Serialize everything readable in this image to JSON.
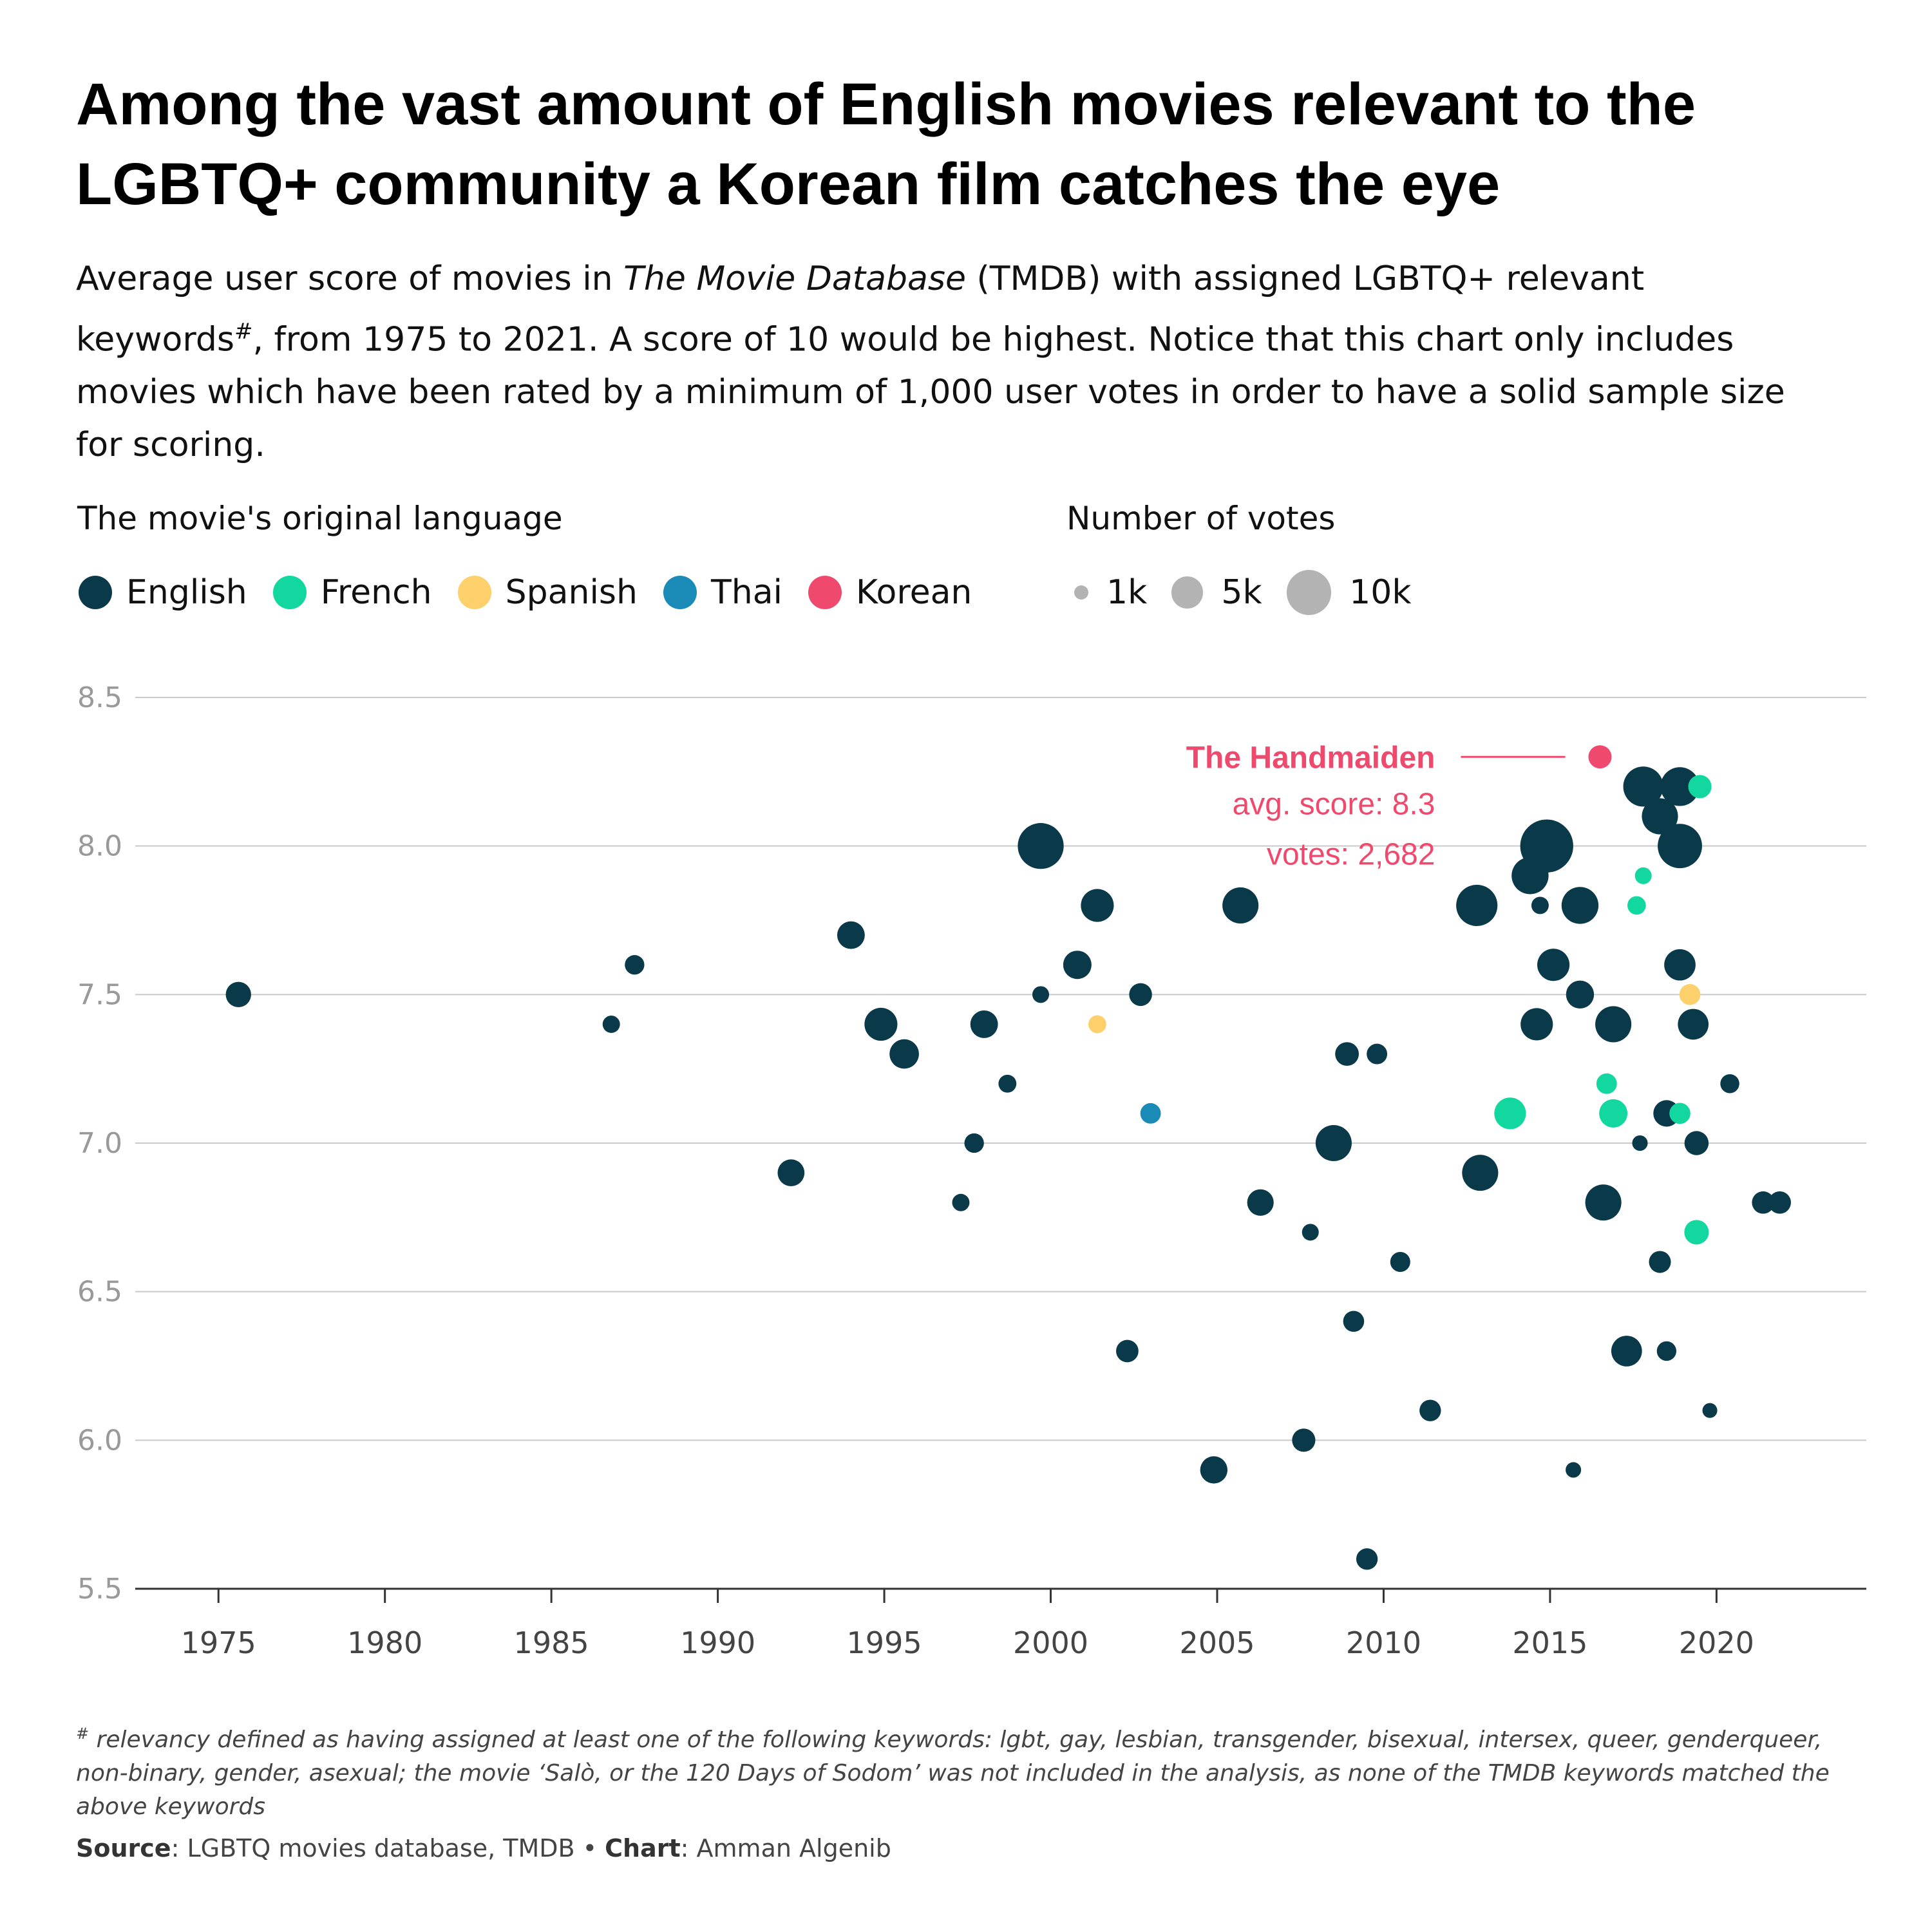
{
  "title": "Among the vast amount of English movies relevant to the LGBTQ+ community a Korean film catches the eye",
  "subtitle": {
    "part1": "Average user score of movies in ",
    "italic": "The Movie Database",
    "part2": " (TMDB) with assigned LGBTQ+ relevant keywords",
    "sup": "#",
    "part3": ", from 1975 to 2021. A score of 10 would be highest. Notice that this chart only includes movies which have been rated by a minimum of 1,000 user votes in order to have a solid sample size for scoring."
  },
  "legend": {
    "language_title": "The movie's original language",
    "votes_title": "Number of votes",
    "languages": [
      {
        "label": "English",
        "color": "#0a3a4a"
      },
      {
        "label": "French",
        "color": "#12d8a0"
      },
      {
        "label": "Spanish",
        "color": "#fdd06b"
      },
      {
        "label": "Thai",
        "color": "#1a8bb6"
      },
      {
        "label": "Korean",
        "color": "#ef4a6e"
      }
    ],
    "sizes": [
      {
        "label": "1k",
        "votes": 1000
      },
      {
        "label": "5k",
        "votes": 5000
      },
      {
        "label": "10k",
        "votes": 10000
      }
    ]
  },
  "annotation": {
    "name": "The Handmaiden",
    "score": "avg. score: 8.3",
    "votes": "votes: 2,682",
    "color": "#ef4a6e"
  },
  "footnote": {
    "sup": "#",
    "text": " relevancy defined as having assigned at least one of the following keywords: lgbt, gay, lesbian, transgender, bisexual, intersex, queer, genderqueer, non-binary, gender, asexual; the movie ‘Salò, or the 120 Days of Sodom’ was not included in the analysis, as none of the TMDB keywords matched the above keywords"
  },
  "source": {
    "source_label": "Source",
    "source_text": ": LGBTQ movies database, TMDB • ",
    "chart_label": "Chart",
    "chart_text": ": Amman Algenib"
  },
  "chart_data": {
    "type": "scatter",
    "title": "Among the vast amount of English movies relevant to the LGBTQ+ community a Korean film catches the eye",
    "xlabel": "",
    "ylabel": "",
    "xlim": [
      1972.5,
      2024.5
    ],
    "ylim": [
      5.5,
      8.5
    ],
    "x_ticks": [
      1975,
      1980,
      1985,
      1990,
      1995,
      2000,
      2005,
      2010,
      2015,
      2020
    ],
    "y_ticks": [
      "5.5",
      "6.0",
      "6.5",
      "7.0",
      "7.5",
      "8.0",
      "8.5"
    ],
    "grid": "horizontal",
    "colors": {
      "English": "#0a3a4a",
      "French": "#12d8a0",
      "Spanish": "#fdd06b",
      "Thai": "#1a8bb6",
      "Korean": "#ef4a6e"
    },
    "size_encoding": "votes",
    "series": [
      {
        "name": "English",
        "points": [
          [
            1975.6,
            7.5,
            3200
          ],
          [
            1986.8,
            7.4,
            1500
          ],
          [
            1987.5,
            7.6,
            1900
          ],
          [
            1992.2,
            6.9,
            3600
          ],
          [
            1994.0,
            7.7,
            3800
          ],
          [
            1994.9,
            7.4,
            5400
          ],
          [
            1995.6,
            7.3,
            4300
          ],
          [
            1997.3,
            6.8,
            1500
          ],
          [
            1997.7,
            7.0,
            1900
          ],
          [
            1998.0,
            7.4,
            3800
          ],
          [
            1998.7,
            7.2,
            1600
          ],
          [
            1999.7,
            7.5,
            1400
          ],
          [
            1999.7,
            8.0,
            10500
          ],
          [
            2000.8,
            7.6,
            4000
          ],
          [
            2001.4,
            7.8,
            5400
          ],
          [
            2002.3,
            6.3,
            2500
          ],
          [
            2002.7,
            7.5,
            2600
          ],
          [
            2004.9,
            5.9,
            3700
          ],
          [
            2005.7,
            7.8,
            6500
          ],
          [
            2006.3,
            6.8,
            3500
          ],
          [
            2007.6,
            6.0,
            2700
          ],
          [
            2007.8,
            6.7,
            1400
          ],
          [
            2008.5,
            7.0,
            6500
          ],
          [
            2008.9,
            7.3,
            2800
          ],
          [
            2009.1,
            6.4,
            2200
          ],
          [
            2009.5,
            5.6,
            2300
          ],
          [
            2009.8,
            7.3,
            2100
          ],
          [
            2010.5,
            6.6,
            2000
          ],
          [
            2011.4,
            6.1,
            2300
          ],
          [
            2012.8,
            7.8,
            8500
          ],
          [
            2012.9,
            6.9,
            6500
          ],
          [
            2013.8,
            7.1,
            1800
          ],
          [
            2014.4,
            7.9,
            6800
          ],
          [
            2014.6,
            7.4,
            5200
          ],
          [
            2014.7,
            7.8,
            1500
          ],
          [
            2014.9,
            8.0,
            14000
          ],
          [
            2015.1,
            7.6,
            5200
          ],
          [
            2015.7,
            5.9,
            1200
          ],
          [
            2015.9,
            7.5,
            3900
          ],
          [
            2015.9,
            7.8,
            6800
          ],
          [
            2016.6,
            6.8,
            6500
          ],
          [
            2016.9,
            7.4,
            6500
          ],
          [
            2017.3,
            6.3,
            4700
          ],
          [
            2017.7,
            7.0,
            1200
          ],
          [
            2017.8,
            8.2,
            8000
          ],
          [
            2018.3,
            8.1,
            6500
          ],
          [
            2018.3,
            6.6,
            2400
          ],
          [
            2018.5,
            6.3,
            1900
          ],
          [
            2018.5,
            7.1,
            3500
          ],
          [
            2018.9,
            8.0,
            9800
          ],
          [
            2018.9,
            7.6,
            4900
          ],
          [
            2018.9,
            8.2,
            7500
          ],
          [
            2019.3,
            7.4,
            4700
          ],
          [
            2019.4,
            7.0,
            2900
          ],
          [
            2019.8,
            6.1,
            1100
          ],
          [
            2020.4,
            7.2,
            1800
          ],
          [
            2021.4,
            6.8,
            2500
          ],
          [
            2021.9,
            6.8,
            2500
          ]
        ]
      },
      {
        "name": "French",
        "points": [
          [
            2013.8,
            7.1,
            5000
          ],
          [
            2016.7,
            7.2,
            2100
          ],
          [
            2016.9,
            7.1,
            4000
          ],
          [
            2017.6,
            7.8,
            1700
          ],
          [
            2017.8,
            7.9,
            1400
          ],
          [
            2018.9,
            7.1,
            2200
          ],
          [
            2019.4,
            6.7,
            3000
          ],
          [
            2019.5,
            8.2,
            2700
          ]
        ]
      },
      {
        "name": "Spanish",
        "points": [
          [
            2001.4,
            7.4,
            1600
          ],
          [
            2019.2,
            7.5,
            2200
          ]
        ]
      },
      {
        "name": "Thai",
        "points": [
          [
            2003.0,
            7.1,
            2100
          ]
        ]
      },
      {
        "name": "Korean",
        "points": [
          [
            2016.5,
            8.3,
            2682
          ]
        ]
      }
    ],
    "annotations": [
      {
        "text": "The Handmaiden",
        "x": 2016.5,
        "y": 8.3,
        "detail": [
          "avg. score: 8.3",
          "votes: 2,682"
        ]
      }
    ]
  }
}
